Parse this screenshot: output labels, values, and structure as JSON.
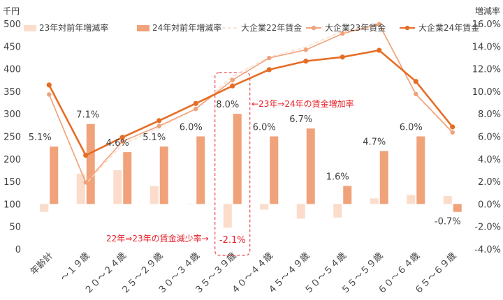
{
  "chart_data": {
    "type": "bar+line",
    "left_unit": "千円",
    "right_unit": "増減率",
    "left_ylim": [
      0,
      500
    ],
    "left_ticks": [
      0,
      50,
      100,
      150,
      200,
      250,
      300,
      350,
      400,
      450,
      500
    ],
    "right_ylim": [
      -4.0,
      16.0
    ],
    "right_ticks": [
      "-4.0%",
      "-2.0%",
      "0.0%",
      "2.0%",
      "4.0%",
      "6.0%",
      "8.0%",
      "10.0%",
      "12.0%",
      "14.0%",
      "16.0%"
    ],
    "categories": [
      "年齢計",
      "～１９歳",
      "２０～２４歳",
      "２５～２９歳",
      "３０～３４歳",
      "３５～３９歳",
      "４０～４４歳",
      "４５～４９歳",
      "５０～５４歳",
      "５５～５９歳",
      "６０～６４歳",
      "６５～６９歳"
    ],
    "series": [
      {
        "name": "23年対前年増減率",
        "kind": "bar",
        "axis": "right",
        "color": "#fbdccb",
        "values": [
          -0.7,
          2.7,
          3.0,
          1.6,
          0.0,
          -2.1,
          -0.5,
          -1.3,
          -1.2,
          0.5,
          0.8,
          0.7
        ]
      },
      {
        "name": "24年対前年増減率",
        "kind": "bar",
        "axis": "right",
        "color": "#f0a27a",
        "values": [
          5.1,
          7.1,
          4.6,
          5.1,
          6.0,
          8.0,
          6.0,
          6.7,
          1.6,
          4.7,
          6.0,
          -0.7
        ]
      },
      {
        "name": "大企業22年賃金",
        "kind": "line",
        "axis": "left",
        "color": "#fbdccb",
        "dashed": true,
        "values": [
          345,
          145,
          232,
          269,
          311,
          383,
          426,
          448,
          484,
          497,
          342,
          257
        ]
      },
      {
        "name": "大企業23年賃金",
        "kind": "line",
        "axis": "left",
        "color": "#f0a27a",
        "values": [
          343,
          148,
          239,
          273,
          311,
          375,
          424,
          442,
          478,
          499,
          344,
          259
        ]
      },
      {
        "name": "大企業24年賃金",
        "kind": "line",
        "axis": "left",
        "color": "#e66d26",
        "values": [
          364,
          208,
          248,
          285,
          323,
          362,
          398,
          417,
          426,
          441,
          372,
          271
        ]
      }
    ],
    "bar_labels": [
      "5.1%",
      "7.1%",
      "4.6%",
      "5.1%",
      "6.0%",
      "8.0%",
      "6.0%",
      "6.7%",
      "1.6%",
      "4.7%",
      "6.0%",
      "-0.7%",
      "-2.1%"
    ],
    "annotations": {
      "increase_note": "←23年⇒24年の賃金増加率",
      "decrease_note": "22年⇒23年の賃金減少率→"
    },
    "highlight_category": "３５～３９歳",
    "grid": false,
    "legend_position": "top"
  }
}
